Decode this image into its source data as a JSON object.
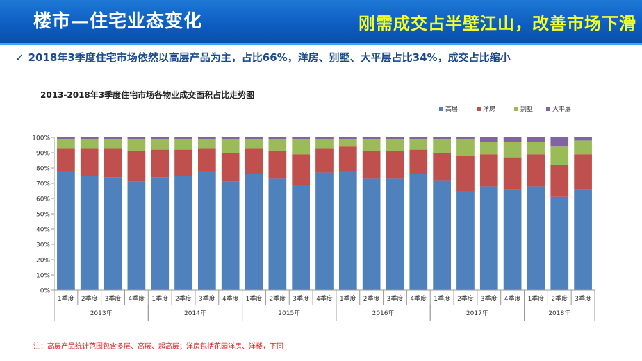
{
  "header": {
    "title": "楼市—住宅业态变化",
    "slogan": "刚需成交占半壁江山，改善市场下滑"
  },
  "bullet": {
    "check": "✓",
    "text": "2018年3季度住宅市场依然以高层产品为主，占比66%，洋房、别墅、大平层占比34%，成交占比缩小"
  },
  "footnote": "注：高层产品统计范围包含多层、高层、超高层；洋房包括花园洋房、洋楼，下同",
  "chart_data": {
    "type": "bar",
    "stacked": true,
    "percent": true,
    "title": "2013-2018年3季度住宅市场各物业成交面积占比走势图",
    "legend_position": "top-right",
    "y_ticks": [
      "0%",
      "10%",
      "20%",
      "30%",
      "40%",
      "50%",
      "60%",
      "70%",
      "80%",
      "90%",
      "100%"
    ],
    "ylim": [
      0,
      100
    ],
    "grid": false,
    "categories": [
      "1季度",
      "2季度",
      "3季度",
      "4季度",
      "1季度",
      "2季度",
      "3季度",
      "4季度",
      "1季度",
      "2季度",
      "3季度",
      "4季度",
      "1季度",
      "2季度",
      "3季度",
      "4季度",
      "1季度",
      "2季度",
      "3季度",
      "4季度",
      "1季度",
      "2季度",
      "3季度"
    ],
    "groups": [
      {
        "label": "2013年",
        "count": 4
      },
      {
        "label": "2014年",
        "count": 4
      },
      {
        "label": "2015年",
        "count": 4
      },
      {
        "label": "2016年",
        "count": 4
      },
      {
        "label": "2017年",
        "count": 4
      },
      {
        "label": "2018年",
        "count": 3
      }
    ],
    "series": [
      {
        "name": "高层",
        "color": "#4f81bd",
        "values": [
          78,
          75,
          74,
          71,
          74,
          75,
          78,
          71,
          76,
          73,
          69,
          77,
          78,
          73,
          73,
          76,
          72,
          65,
          68,
          66,
          68,
          61,
          66
        ]
      },
      {
        "name": "洋房",
        "color": "#c0504d",
        "values": [
          15,
          18,
          19,
          20,
          18,
          17,
          15,
          19,
          17,
          18,
          20,
          16,
          16,
          18,
          18,
          16,
          18,
          23,
          21,
          21,
          21,
          21,
          23
        ]
      },
      {
        "name": "别墅",
        "color": "#9bbb59",
        "values": [
          6,
          6,
          6,
          8,
          7,
          7,
          6,
          9,
          6,
          8,
          10,
          6,
          5,
          8,
          8,
          7,
          9,
          11,
          8,
          10,
          8,
          12,
          9
        ]
      },
      {
        "name": "大平层",
        "color": "#8064a2",
        "values": [
          1,
          1,
          1,
          1,
          1,
          1,
          1,
          1,
          1,
          1,
          1,
          1,
          1,
          1,
          1,
          1,
          1,
          1,
          3,
          3,
          3,
          6,
          2
        ]
      }
    ]
  }
}
